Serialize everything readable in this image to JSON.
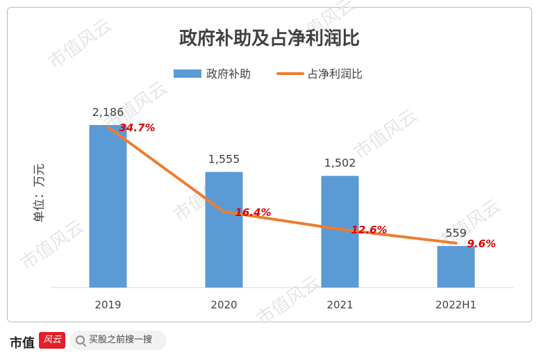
{
  "chart_data": {
    "type": "bar",
    "title": "政府补助及占净利润比",
    "ylabel": "单位：万元",
    "categories": [
      "2019",
      "2020",
      "2021",
      "2022H1"
    ],
    "series": [
      {
        "name": "政府补助",
        "kind": "bar",
        "values": [
          2186,
          1555,
          1502,
          559
        ],
        "labels": [
          "2,186",
          "1,555",
          "1,502",
          "559"
        ],
        "color": "#5b9bd5"
      },
      {
        "name": "占净利润比",
        "kind": "line",
        "values": [
          34.7,
          16.4,
          12.6,
          9.6
        ],
        "labels": [
          "34.7%",
          "16.4%",
          "12.6%",
          "9.6%"
        ],
        "color": "#ed7d31"
      }
    ],
    "ylim": [
      0,
      2400
    ],
    "y2lim": [
      0,
      40
    ],
    "legend": "top",
    "grid": false,
    "line_label_color": "#e00000"
  },
  "watermark": "市值风云",
  "footer": {
    "brand": "市值",
    "logo_text": "风云",
    "search_text": "买股之前搜一搜",
    "search_icon": "search-icon"
  }
}
